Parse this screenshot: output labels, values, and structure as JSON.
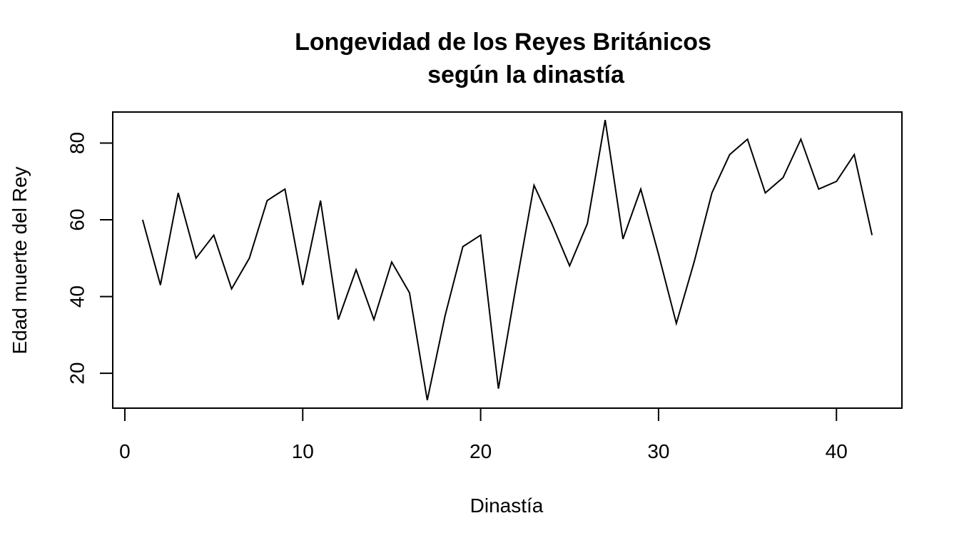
{
  "chart_data": {
    "type": "line",
    "title": [
      "Longevidad de los Reyes Británicos",
      "según la dinastía"
    ],
    "xlabel": "Dinastía",
    "ylabel": "Edad muerte del Rey",
    "xlim": [
      -0.68,
      43.68
    ],
    "ylim": [
      10.92,
      88.08
    ],
    "x_ticks": [
      0,
      10,
      20,
      30,
      40
    ],
    "y_ticks": [
      20,
      40,
      60,
      80
    ],
    "grid": false,
    "line_color": "#000000",
    "series": [
      {
        "x": [
          1,
          2,
          3,
          4,
          5,
          6,
          7,
          8,
          9,
          10,
          11,
          12,
          13,
          14,
          15,
          16,
          17,
          18,
          19,
          20,
          21,
          22,
          23,
          24,
          25,
          26,
          27,
          28,
          29,
          30,
          31,
          32,
          33,
          34,
          35,
          36,
          37,
          38,
          39,
          40,
          41,
          42
        ],
        "values": [
          60,
          43,
          67,
          50,
          56,
          42,
          50,
          65,
          68,
          43,
          65,
          34,
          47,
          34,
          49,
          41,
          13,
          35,
          53,
          56,
          16,
          43,
          69,
          59,
          48,
          59,
          86,
          55,
          68,
          51,
          33,
          49,
          67,
          77,
          81,
          67,
          71,
          81,
          68,
          70,
          77,
          56
        ]
      }
    ]
  }
}
